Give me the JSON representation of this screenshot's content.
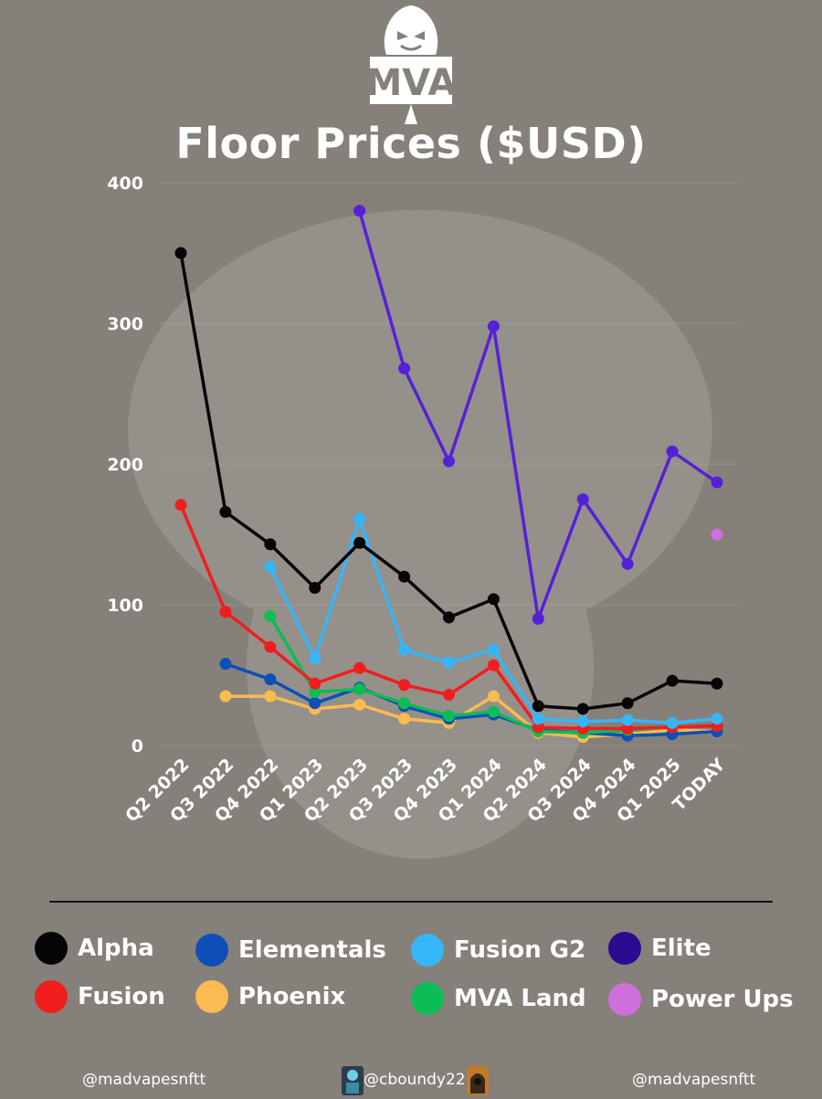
{
  "logo": {
    "name": "mva-gorilla-logo",
    "text": "MVA"
  },
  "chart_data": {
    "type": "line",
    "title": "Floor Prices ($USD)",
    "xlabel": "",
    "ylabel": "",
    "ylim": [
      0,
      400
    ],
    "yticks": [
      0,
      100,
      200,
      300,
      400
    ],
    "categories": [
      "Q2 2022",
      "Q3 2022",
      "Q4 2022",
      "Q1 2023",
      "Q2 2023",
      "Q3 2023",
      "Q4 2023",
      "Q1 2024",
      "Q2 2024",
      "Q3 2024",
      "Q4 2024",
      "Q1 2025",
      "TODAY"
    ],
    "grid": true,
    "series": [
      {
        "name": "Power Ups",
        "color": "#cf6fdc",
        "values": [
          null,
          null,
          null,
          null,
          null,
          null,
          null,
          null,
          null,
          null,
          null,
          null,
          150
        ]
      },
      {
        "name": "Phoenix",
        "color": "#fbba52",
        "values": [
          null,
          35,
          35,
          26,
          29,
          19,
          16,
          35,
          9,
          6,
          8,
          11,
          10
        ]
      },
      {
        "name": "Elementals",
        "color": "#0d4fb6",
        "values": [
          null,
          58,
          47,
          30,
          41,
          28,
          19,
          22,
          11,
          9,
          7,
          8,
          10
        ]
      },
      {
        "name": "MVA Land",
        "color": "#0bbd54",
        "values": [
          null,
          null,
          92,
          38,
          40,
          30,
          21,
          24,
          10,
          9,
          11,
          13,
          14
        ]
      },
      {
        "name": "Fusion",
        "color": "#f21d1d",
        "values": [
          171,
          95,
          70,
          44,
          55,
          43,
          36,
          57,
          13,
          12,
          12,
          13,
          14
        ]
      },
      {
        "name": "Fusion G2",
        "color": "#36b6f8",
        "values": [
          null,
          null,
          127,
          62,
          161,
          68,
          59,
          68,
          19,
          17,
          18,
          16,
          19
        ]
      },
      {
        "name": "Alpha",
        "color": "#050505",
        "values": [
          350,
          166,
          143,
          112,
          144,
          120,
          91,
          104,
          28,
          26,
          30,
          46,
          44
        ]
      },
      {
        "name": "Elite",
        "color": "#5620d8",
        "values": [
          null,
          null,
          null,
          null,
          380,
          268,
          202,
          298,
          90,
          175,
          129,
          209,
          187
        ]
      }
    ]
  },
  "legend": [
    {
      "label": "Alpha",
      "color": "#050505"
    },
    {
      "label": "Elementals",
      "color": "#0d4fb6"
    },
    {
      "label": "Fusion G2",
      "color": "#36b6f8"
    },
    {
      "label": "Elite",
      "color": "#2b0b8f"
    },
    {
      "label": "Fusion",
      "color": "#f21d1d"
    },
    {
      "label": "Phoenix",
      "color": "#fbba52"
    },
    {
      "label": "MVA Land",
      "color": "#0bbd54"
    },
    {
      "label": "Power Ups",
      "color": "#cf6fdc"
    }
  ],
  "footer": {
    "left": "@madvapesnftt",
    "center": "@cboundy22",
    "right": "@madvapesnftt"
  }
}
